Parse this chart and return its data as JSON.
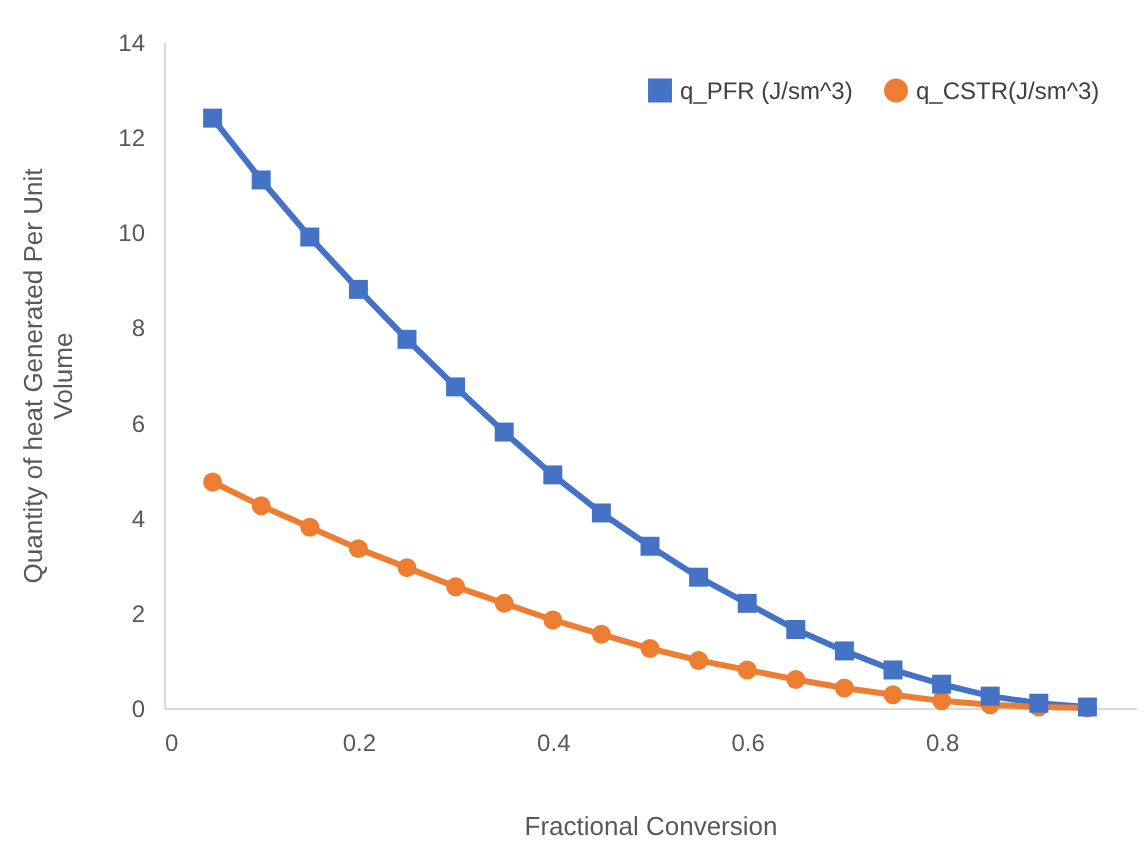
{
  "chart_data": {
    "type": "line",
    "xlabel": "Fractional Conversion",
    "ylabel": "Quantity of heat Generated Per Unit Volume",
    "x": [
      0.05,
      0.1,
      0.15,
      0.2,
      0.25,
      0.3,
      0.35,
      0.4,
      0.45,
      0.5,
      0.55,
      0.6,
      0.65,
      0.7,
      0.75,
      0.8,
      0.85,
      0.9,
      0.95
    ],
    "series": [
      {
        "name": "q_PFR (J/sm^3)",
        "color": "#4472c4",
        "marker": "square",
        "values": [
          12.4,
          11.1,
          9.9,
          8.8,
          7.75,
          6.75,
          5.8,
          4.9,
          4.1,
          3.4,
          2.75,
          2.2,
          1.65,
          1.2,
          0.8,
          0.5,
          0.25,
          0.1,
          0.02
        ]
      },
      {
        "name": "q_CSTR(J/sm^3)",
        "color": "#ed7d31",
        "marker": "circle",
        "values": [
          4.75,
          4.25,
          3.8,
          3.35,
          2.95,
          2.55,
          2.2,
          1.85,
          1.55,
          1.25,
          1.0,
          0.8,
          0.6,
          0.42,
          0.28,
          0.15,
          0.07,
          0.02,
          0.0
        ]
      }
    ],
    "xlim": [
      0,
      1
    ],
    "xticks": [
      0,
      0.2,
      0.4,
      0.6,
      0.8
    ],
    "ylim": [
      0,
      14
    ],
    "yticks": [
      0,
      2,
      4,
      6,
      8,
      10,
      12,
      14
    ],
    "grid": false,
    "legend": "top right"
  }
}
